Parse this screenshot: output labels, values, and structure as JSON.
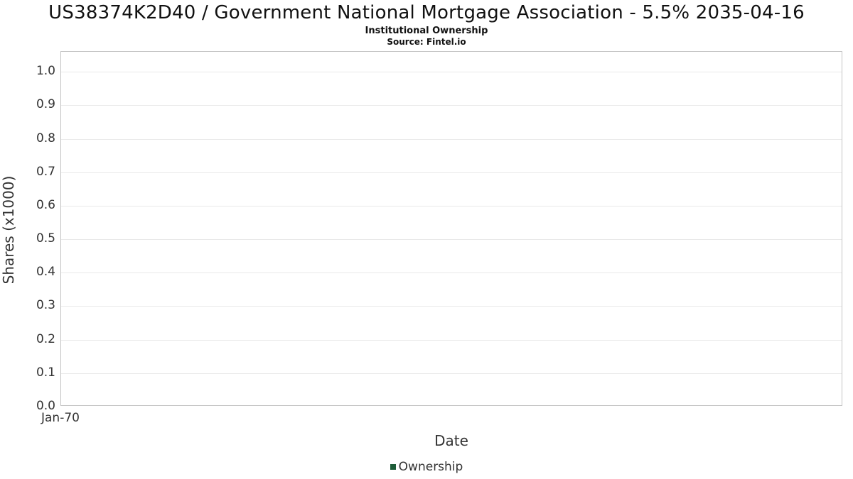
{
  "header": {
    "title": "US38374K2D40 / Government National Mortgage Association - 5.5% 2035-04-16",
    "subtitle": "Institutional Ownership",
    "source": "Source: Fintel.io"
  },
  "chart_data": {
    "type": "bar",
    "title": "US38374K2D40 / Government National Mortgage Association - 5.5% 2035-04-16",
    "subtitle": "Institutional Ownership",
    "source": "Source: Fintel.io",
    "xlabel": "Date",
    "ylabel": "Shares (x1000)",
    "x_ticks": [
      "Jan-70"
    ],
    "y_ticks": [
      "0.0",
      "0.1",
      "0.2",
      "0.3",
      "0.4",
      "0.5",
      "0.6",
      "0.7",
      "0.8",
      "0.9",
      "1.0"
    ],
    "ylim": [
      0,
      1.06
    ],
    "categories": [],
    "series": [
      {
        "name": "Ownership",
        "values": []
      }
    ],
    "grid": true,
    "legend_position": "bottom",
    "legend": [
      {
        "label": "Ownership",
        "color": "#1d5c38"
      }
    ]
  }
}
